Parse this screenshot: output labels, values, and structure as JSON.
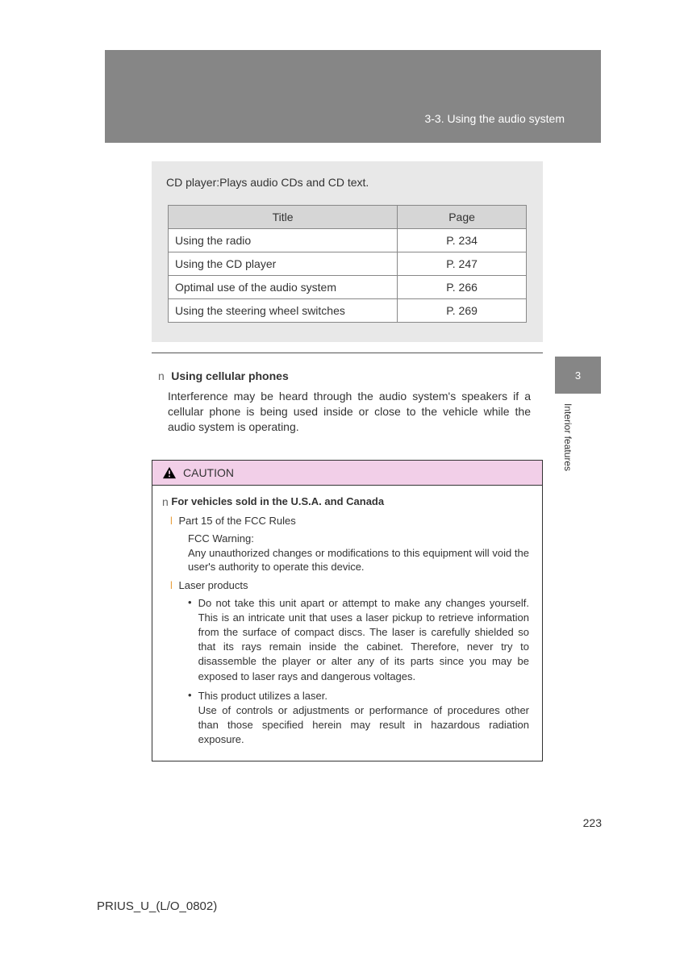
{
  "header": {
    "section_label": "3-3. Using the audio system"
  },
  "info": {
    "description": "CD player:Plays audio CDs and CD text.",
    "columns": [
      "Title",
      "Page"
    ],
    "rows": [
      {
        "title": "Using the radio",
        "page": "P. 234"
      },
      {
        "title": "Using the CD player",
        "page": "P. 247"
      },
      {
        "title": "Optimal use of the audio system",
        "page": "P. 266"
      },
      {
        "title": "Using the steering wheel switches",
        "page": "P. 269"
      }
    ]
  },
  "cellular": {
    "marker": "n",
    "title": "Using cellular phones",
    "body": "Interference may be heard through the audio system's speakers if a cellular phone is being used inside or close to the vehicle while the audio system is operating."
  },
  "tab": {
    "number": "3",
    "side_label": "Interior features"
  },
  "caution": {
    "label": "CAUTION",
    "heading_marker": "n",
    "heading": "For vehicles sold in the U.S.A. and Canada",
    "items": [
      {
        "marker": "l",
        "text": "Part 15 of the FCC Rules",
        "sub_heading": "FCC Warning:",
        "sub_text": "Any unauthorized changes or modifications to this equipment will void the user's authority to operate this device."
      },
      {
        "marker": "l",
        "text": "Laser products",
        "bullets": [
          "Do not take this unit apart or attempt to make any changes yourself. This is an intricate unit that uses a laser pickup to retrieve information from the surface of compact discs. The laser is carefully shielded so that its rays remain inside the cabinet. Therefore, never try to disassemble the player or alter any of its parts since you may be exposed to laser rays and dangerous voltages.",
          "This product utilizes a laser.\nUse of controls or adjustments or performance of procedures other than those specified herein may result in hazardous radiation exposure."
        ]
      }
    ]
  },
  "page_number": "223",
  "footer": "PRIUS_U_(L/O_0802)",
  "colors": {
    "header_bg": "#868686",
    "info_bg": "#e8e8e8",
    "caution_header_bg": "#f2cfe8",
    "l_marker": "#e8a040"
  }
}
